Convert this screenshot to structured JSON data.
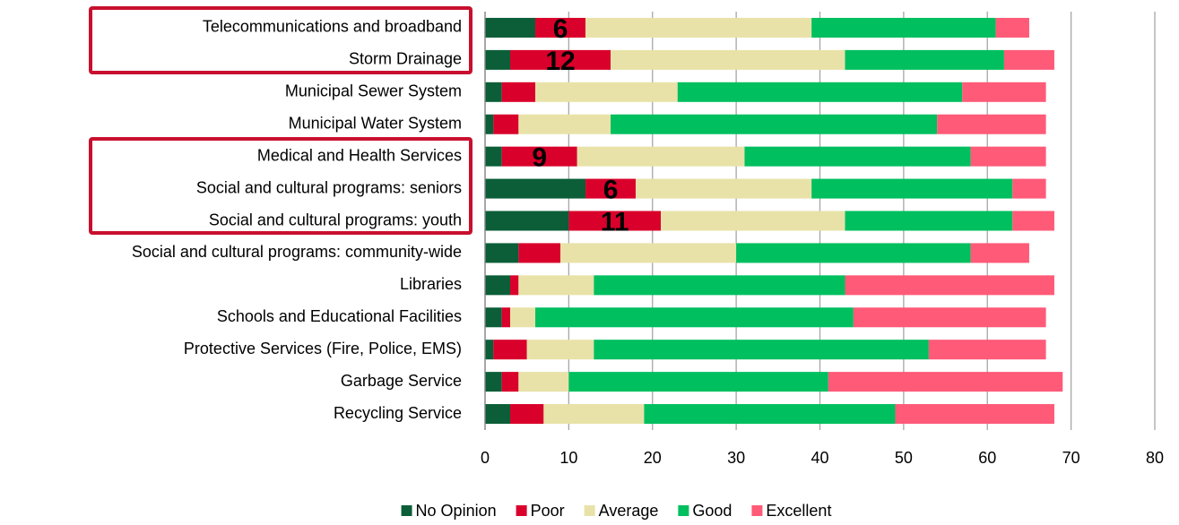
{
  "chart_data": {
    "type": "stacked-bar-horizontal",
    "categories": [
      "Telecommunications and broadband",
      "Storm Drainage",
      "Municipal Sewer System",
      "Municipal Water System",
      "Medical and Health Services",
      "Social and cultural programs: seniors",
      "Social and cultural programs: youth",
      "Social and cultural programs: community-wide",
      "Libraries",
      "Schools and Educational Facilities",
      "Protective Services (Fire, Police, EMS)",
      "Garbage Service",
      "Recycling Service"
    ],
    "series": [
      {
        "name": "No Opinion",
        "color": "#0b5e38",
        "values": [
          6,
          3,
          2,
          1,
          2,
          12,
          10,
          4,
          3,
          2,
          1,
          2,
          3
        ]
      },
      {
        "name": "Poor",
        "color": "#d9002b",
        "values": [
          6,
          12,
          4,
          3,
          9,
          6,
          11,
          5,
          1,
          1,
          4,
          2,
          4
        ],
        "value_labels": [
          "6",
          "12",
          null,
          null,
          "9",
          "6",
          "11",
          null,
          null,
          null,
          null,
          null,
          null
        ]
      },
      {
        "name": "Average",
        "color": "#e8e2a8",
        "values": [
          27,
          28,
          17,
          11,
          20,
          21,
          22,
          21,
          9,
          3,
          8,
          6,
          12
        ]
      },
      {
        "name": "Good",
        "color": "#00bf5f",
        "values": [
          22,
          19,
          34,
          39,
          27,
          24,
          20,
          28,
          30,
          38,
          40,
          31,
          30
        ]
      },
      {
        "name": "Excellent",
        "color": "#ff5a78",
        "values": [
          4,
          6,
          10,
          13,
          9,
          4,
          5,
          7,
          25,
          23,
          14,
          28,
          19
        ]
      }
    ],
    "xlim": [
      0,
      80
    ],
    "xticks": [
      0,
      10,
      20,
      30,
      40,
      50,
      60,
      70,
      80
    ],
    "grid": true,
    "legend": "bottom"
  }
}
